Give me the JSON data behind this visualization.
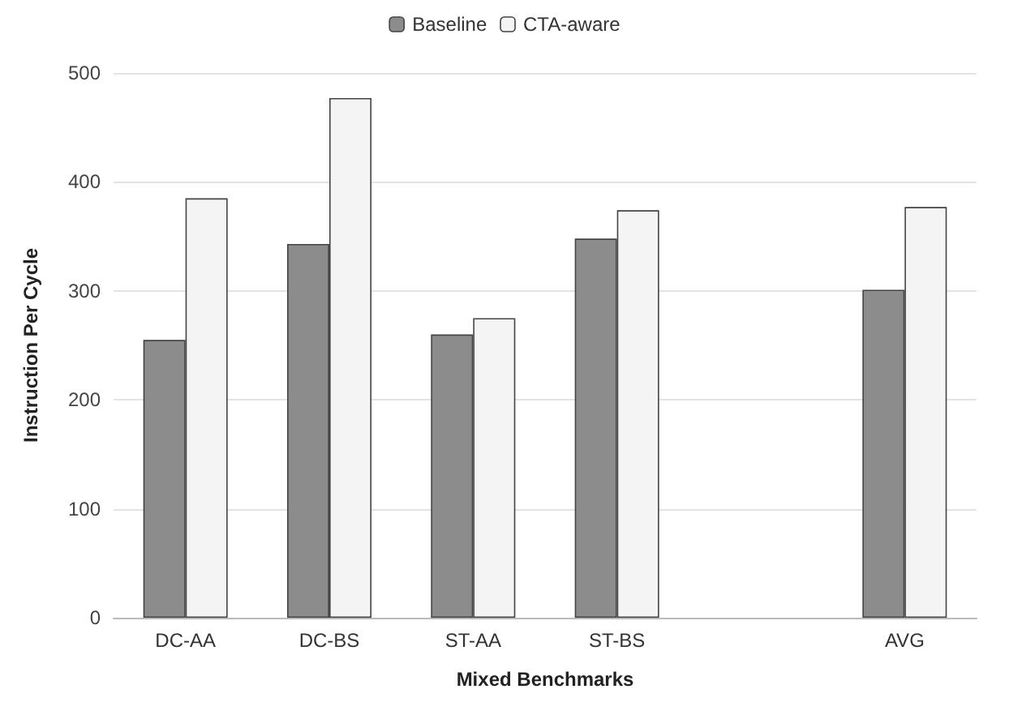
{
  "chart_data": {
    "type": "bar",
    "xlabel": "Mixed Benchmarks",
    "ylabel": "Instruction Per Cycle",
    "categories": [
      "DC-AA",
      "DC-BS",
      "ST-AA",
      "ST-BS",
      null,
      "AVG"
    ],
    "series": [
      {
        "name": "Baseline",
        "color": "#8c8c8c",
        "values": [
          255,
          343,
          260,
          348,
          null,
          301
        ]
      },
      {
        "name": "CTA-aware",
        "color": "#f4f4f4",
        "values": [
          385,
          477,
          275,
          374,
          null,
          377
        ]
      }
    ],
    "ylim": [
      0,
      500
    ],
    "yticks": [
      0,
      100,
      200,
      300,
      400,
      500
    ],
    "grid": "y",
    "legend": "top"
  }
}
